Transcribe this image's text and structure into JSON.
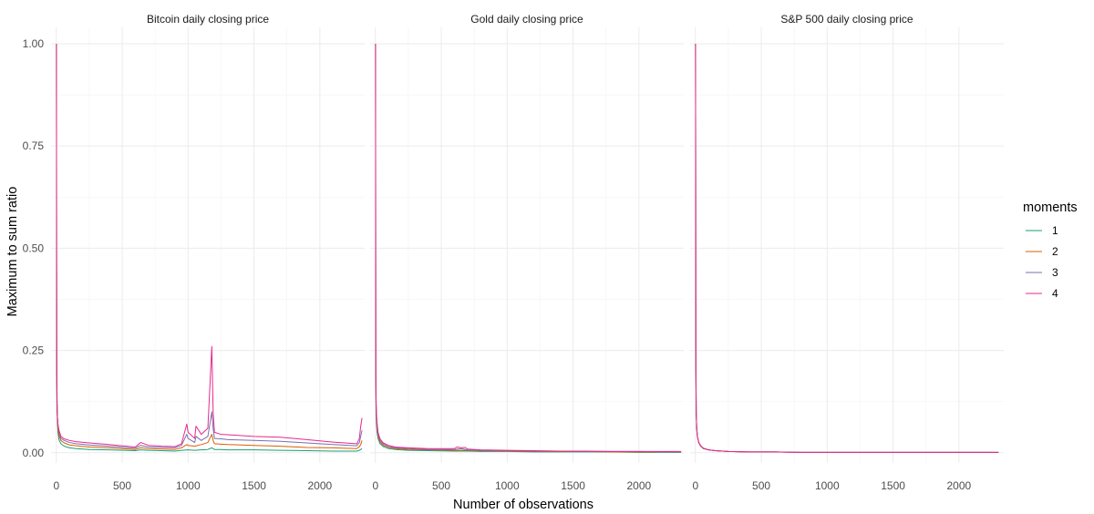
{
  "chart_data": {
    "type": "line",
    "xlabel": "Number of observations",
    "ylabel": "Maximum to sum ratio",
    "xlim": [
      -40,
      2340
    ],
    "ylim": [
      -0.025,
      1.04
    ],
    "x_ticks": [
      0,
      500,
      1000,
      1500,
      2000
    ],
    "y_ticks": [
      0,
      0.25,
      0.5,
      0.75,
      1
    ],
    "y_tick_labels": [
      "0.00",
      "0.25",
      "0.50",
      "0.75",
      "1.00"
    ],
    "grid": true,
    "legend": {
      "title": "moments",
      "placement": "right",
      "entries": [
        "1",
        "2",
        "3",
        "4"
      ]
    },
    "series_colors": {
      "1": "#1b9e77",
      "2": "#d95f02",
      "3": "#7570b3",
      "4": "#e7298a"
    },
    "panels": [
      {
        "title": "Bitcoin daily closing price",
        "series": [
          {
            "name": "1",
            "x": [
              1,
              2,
              3,
              5,
              8,
              12,
              20,
              35,
              60,
              100,
              150,
              250,
              400,
              600,
              640,
              700,
              800,
              900,
              950,
              1000,
              1050,
              1100,
              1150,
              1180,
              1190,
              1200,
              1250,
              1300,
              1500,
              1700,
              1900,
              2100,
              2280,
              2300,
              2310,
              2320
            ],
            "y": [
              1.0,
              0.5,
              0.25,
              0.15,
              0.08,
              0.05,
              0.032,
              0.022,
              0.016,
              0.012,
              0.01,
              0.008,
              0.007,
              0.005,
              0.007,
              0.006,
              0.005,
              0.004,
              0.006,
              0.007,
              0.006,
              0.007,
              0.008,
              0.012,
              0.01,
              0.008,
              0.008,
              0.007,
              0.007,
              0.006,
              0.005,
              0.004,
              0.004,
              0.006,
              0.008,
              0.01
            ]
          },
          {
            "name": "2",
            "x": [
              1,
              2,
              3,
              5,
              8,
              12,
              20,
              35,
              60,
              100,
              150,
              250,
              400,
              600,
              640,
              700,
              800,
              900,
              950,
              990,
              1000,
              1050,
              1100,
              1150,
              1180,
              1190,
              1200,
              1250,
              1300,
              1500,
              1700,
              1900,
              2100,
              2280,
              2300,
              2310,
              2320
            ],
            "y": [
              1.0,
              0.5,
              0.22,
              0.13,
              0.09,
              0.06,
              0.042,
              0.03,
              0.024,
              0.019,
              0.017,
              0.014,
              0.012,
              0.008,
              0.012,
              0.01,
              0.009,
              0.008,
              0.012,
              0.02,
              0.018,
              0.016,
              0.02,
              0.025,
              0.045,
              0.03,
              0.022,
              0.021,
              0.02,
              0.018,
              0.016,
              0.013,
              0.012,
              0.01,
              0.015,
              0.02,
              0.03
            ]
          },
          {
            "name": "3",
            "x": [
              1,
              2,
              3,
              5,
              8,
              12,
              20,
              35,
              60,
              100,
              150,
              250,
              400,
              600,
              640,
              700,
              800,
              900,
              950,
              990,
              1000,
              1050,
              1060,
              1100,
              1150,
              1180,
              1190,
              1200,
              1250,
              1300,
              1500,
              1700,
              1900,
              2100,
              2280,
              2300,
              2310,
              2320
            ],
            "y": [
              1.0,
              0.5,
              0.2,
              0.12,
              0.09,
              0.07,
              0.05,
              0.035,
              0.03,
              0.025,
              0.022,
              0.019,
              0.016,
              0.011,
              0.018,
              0.014,
              0.013,
              0.012,
              0.018,
              0.045,
              0.035,
              0.025,
              0.04,
              0.03,
              0.04,
              0.1,
              0.06,
              0.035,
              0.034,
              0.032,
              0.03,
              0.028,
              0.024,
              0.02,
              0.017,
              0.025,
              0.04,
              0.055
            ]
          },
          {
            "name": "4",
            "x": [
              1,
              2,
              3,
              5,
              8,
              12,
              20,
              35,
              60,
              100,
              150,
              250,
              400,
              600,
              640,
              700,
              800,
              900,
              950,
              990,
              1000,
              1050,
              1060,
              1100,
              1150,
              1180,
              1190,
              1200,
              1250,
              1300,
              1500,
              1700,
              1900,
              2100,
              2280,
              2300,
              2310,
              2320
            ],
            "y": [
              1.0,
              0.5,
              0.2,
              0.11,
              0.09,
              0.07,
              0.055,
              0.04,
              0.034,
              0.03,
              0.027,
              0.024,
              0.02,
              0.014,
              0.025,
              0.018,
              0.016,
              0.015,
              0.022,
              0.07,
              0.05,
              0.035,
              0.065,
              0.045,
              0.06,
              0.26,
              0.1,
              0.05,
              0.045,
              0.044,
              0.04,
              0.038,
              0.032,
              0.026,
              0.022,
              0.035,
              0.065,
              0.085
            ]
          }
        ]
      },
      {
        "title": "Gold daily closing price",
        "series": [
          {
            "name": "1",
            "x": [
              1,
              2,
              3,
              5,
              8,
              12,
              20,
              35,
              60,
              100,
              150,
              250,
              400,
              600,
              700,
              800,
              1000,
              1200,
              1400,
              1600,
              1800,
              2000,
              2200,
              2320
            ],
            "y": [
              1.0,
              0.5,
              0.2,
              0.1,
              0.07,
              0.05,
              0.035,
              0.022,
              0.015,
              0.01,
              0.008,
              0.006,
              0.005,
              0.004,
              0.004,
              0.003,
              0.003,
              0.002,
              0.002,
              0.002,
              0.002,
              0.001,
              0.001,
              0.001
            ]
          },
          {
            "name": "2",
            "x": [
              1,
              2,
              3,
              5,
              8,
              12,
              20,
              35,
              60,
              100,
              150,
              250,
              400,
              600,
              700,
              800,
              1000,
              1200,
              1400,
              1600,
              1800,
              2000,
              2200,
              2320
            ],
            "y": [
              1.0,
              0.5,
              0.2,
              0.11,
              0.08,
              0.06,
              0.04,
              0.026,
              0.018,
              0.013,
              0.01,
              0.008,
              0.007,
              0.006,
              0.006,
              0.005,
              0.004,
              0.003,
              0.003,
              0.003,
              0.002,
              0.002,
              0.002,
              0.002
            ]
          },
          {
            "name": "3",
            "x": [
              1,
              2,
              3,
              5,
              8,
              12,
              20,
              35,
              60,
              100,
              150,
              250,
              400,
              600,
              650,
              700,
              800,
              1000,
              1200,
              1400,
              1600,
              1800,
              2000,
              2200,
              2320
            ],
            "y": [
              1.0,
              0.5,
              0.2,
              0.12,
              0.09,
              0.065,
              0.045,
              0.03,
              0.021,
              0.015,
              0.012,
              0.01,
              0.008,
              0.008,
              0.01,
              0.007,
              0.006,
              0.005,
              0.004,
              0.004,
              0.003,
              0.003,
              0.003,
              0.002,
              0.002
            ]
          },
          {
            "name": "4",
            "x": [
              1,
              2,
              3,
              5,
              8,
              12,
              20,
              35,
              60,
              100,
              150,
              250,
              400,
              600,
              620,
              650,
              680,
              700,
              800,
              1000,
              1200,
              1400,
              1600,
              1800,
              2000,
              2200,
              2320
            ],
            "y": [
              1.0,
              0.5,
              0.2,
              0.13,
              0.1,
              0.075,
              0.05,
              0.034,
              0.024,
              0.018,
              0.014,
              0.012,
              0.01,
              0.01,
              0.014,
              0.012,
              0.013,
              0.009,
              0.007,
              0.006,
              0.005,
              0.004,
              0.004,
              0.003,
              0.003,
              0.003,
              0.003
            ]
          }
        ]
      },
      {
        "title": "S&P 500 daily closing price",
        "series": [
          {
            "name": "1",
            "x": [
              1,
              2,
              3,
              4,
              6,
              10,
              15,
              25,
              40,
              60,
              100,
              150,
              250,
              400,
              600,
              800,
              1000,
              1200,
              1400,
              1600,
              1800,
              2000,
              2200,
              2300
            ],
            "y": [
              1.0,
              0.7,
              0.34,
              0.2,
              0.1,
              0.06,
              0.04,
              0.025,
              0.016,
              0.01,
              0.007,
              0.005,
              0.003,
              0.002,
              0.002,
              0.001,
              0.001,
              0.001,
              0.001,
              0.001,
              0.001,
              0.001,
              0.001,
              0.001
            ]
          },
          {
            "name": "2",
            "x": [
              1,
              2,
              3,
              4,
              6,
              10,
              15,
              25,
              40,
              60,
              100,
              150,
              250,
              400,
              600,
              800,
              1000,
              1200,
              1400,
              1600,
              1800,
              2000,
              2200,
              2300
            ],
            "y": [
              1.0,
              0.7,
              0.34,
              0.2,
              0.1,
              0.06,
              0.04,
              0.025,
              0.016,
              0.011,
              0.007,
              0.005,
              0.003,
              0.002,
              0.002,
              0.001,
              0.001,
              0.001,
              0.001,
              0.001,
              0.001,
              0.001,
              0.001,
              0.001
            ]
          },
          {
            "name": "3",
            "x": [
              1,
              2,
              3,
              4,
              6,
              10,
              15,
              25,
              40,
              60,
              100,
              150,
              250,
              400,
              600,
              800,
              1000,
              1200,
              1400,
              1600,
              1800,
              2000,
              2200,
              2300
            ],
            "y": [
              1.0,
              0.7,
              0.34,
              0.2,
              0.1,
              0.06,
              0.04,
              0.025,
              0.017,
              0.011,
              0.007,
              0.005,
              0.003,
              0.002,
              0.002,
              0.001,
              0.001,
              0.001,
              0.001,
              0.001,
              0.001,
              0.001,
              0.001,
              0.001
            ]
          },
          {
            "name": "4",
            "x": [
              1,
              2,
              3,
              4,
              6,
              10,
              15,
              25,
              40,
              60,
              100,
              150,
              250,
              400,
              600,
              800,
              1000,
              1200,
              1400,
              1600,
              1800,
              2000,
              2200,
              2300
            ],
            "y": [
              1.0,
              0.7,
              0.34,
              0.2,
              0.1,
              0.06,
              0.04,
              0.026,
              0.017,
              0.011,
              0.007,
              0.005,
              0.003,
              0.002,
              0.002,
              0.001,
              0.001,
              0.001,
              0.001,
              0.001,
              0.001,
              0.001,
              0.001,
              0.001
            ]
          }
        ]
      }
    ]
  }
}
